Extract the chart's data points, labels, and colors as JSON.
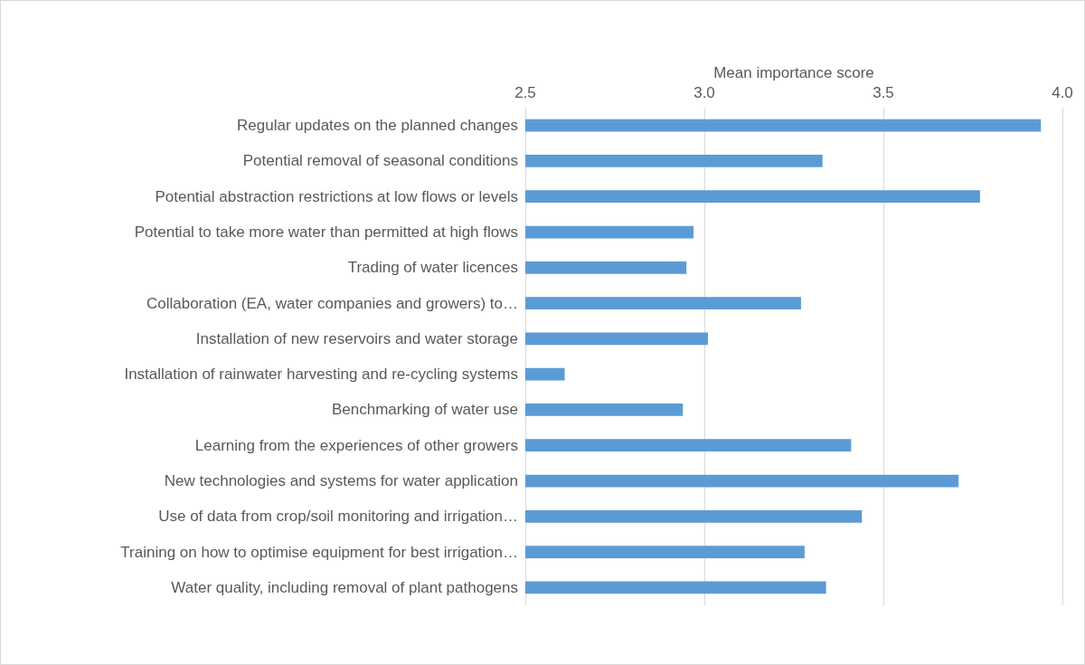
{
  "chart_data": {
    "type": "bar",
    "orientation": "horizontal",
    "xlabel": "Mean importance score",
    "categories": [
      "Regular updates on the planned changes",
      "Potential removal of seasonal conditions",
      "Potential abstraction restrictions at low flows or levels",
      "Potential to take more water than permitted at high flows",
      "Trading of water licences",
      "Collaboration (EA, water companies and growers) to…",
      "Installation of new reservoirs and water storage",
      "Installation of rainwater harvesting and re-cycling systems",
      "Benchmarking of water use",
      "Learning from the experiences of other growers",
      "New technologies and systems for water application",
      "Use of data from crop/soil monitoring and irrigation…",
      "Training on how to optimise equipment for best irrigation…",
      "Water quality, including removal of plant pathogens"
    ],
    "values": [
      3.94,
      3.33,
      3.77,
      2.97,
      2.95,
      3.27,
      3.01,
      2.61,
      2.94,
      3.41,
      3.71,
      3.44,
      3.28,
      3.34
    ],
    "color": "#5b9bd5",
    "xlim": [
      2.5,
      4.0
    ],
    "xticks": [
      {
        "value": 2.5,
        "label": "2.5"
      },
      {
        "value": 3.0,
        "label": "3.0"
      },
      {
        "value": 3.5,
        "label": "3.5"
      },
      {
        "value": 4.0,
        "label": "4.0"
      }
    ],
    "grid": "x"
  }
}
